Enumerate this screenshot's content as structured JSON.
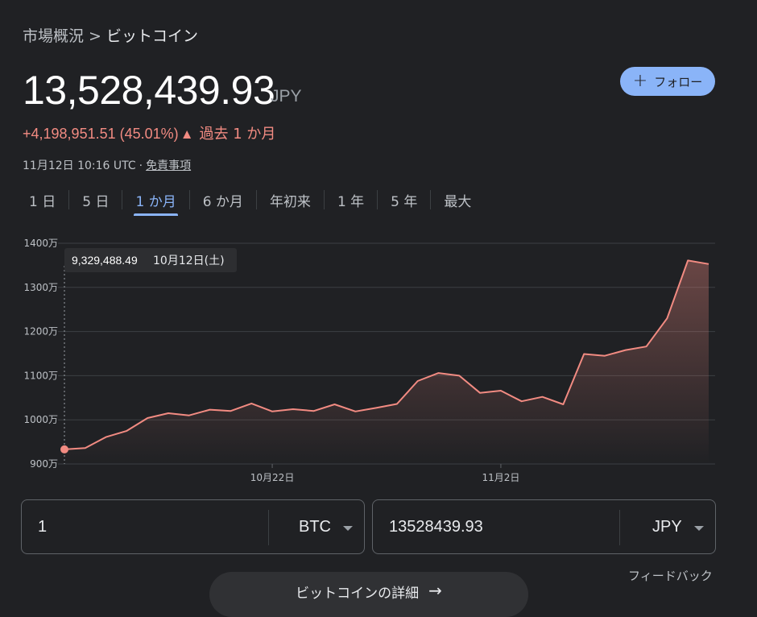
{
  "breadcrumb": {
    "parent": "市場概況",
    "separator": ">",
    "current": "ビットコイン"
  },
  "price": {
    "value": "13,528,439.93",
    "currency": "JPY"
  },
  "follow_button": {
    "label": "フォロー",
    "icon": "plus-icon"
  },
  "change": {
    "amount": "+4,198,951.51",
    "percent": "(45.01%)",
    "direction": "up-arrow-icon",
    "period": "過去 1 か月"
  },
  "timestamp": {
    "time": "11月12日 10:16 UTC",
    "dot": "·",
    "disclaimer": "免責事項"
  },
  "tabs": [
    {
      "label": "1 日"
    },
    {
      "label": "5 日"
    },
    {
      "label": "1 か月",
      "active": true
    },
    {
      "label": "6 か月"
    },
    {
      "label": "年初来"
    },
    {
      "label": "1 年"
    },
    {
      "label": "5 年"
    },
    {
      "label": "最大"
    }
  ],
  "colors": {
    "accent": "#8ab4f8",
    "line": "#f28b82",
    "background": "#202124"
  },
  "chart_data": {
    "type": "line",
    "ylim": [
      900,
      1400
    ],
    "y_ticks": [
      "1400万",
      "1300万",
      "1200万",
      "1100万",
      "1000万",
      "900万"
    ],
    "y_tick_values": [
      1400,
      1300,
      1200,
      1100,
      1000,
      900
    ],
    "x_ticks": [
      {
        "label": "10月22日",
        "index": 10
      },
      {
        "label": "11月2日",
        "index": 21
      }
    ],
    "series": [
      {
        "values": [
          933,
          936,
          961,
          975,
          1004,
          1015,
          1010,
          1023,
          1020,
          1037,
          1019,
          1024,
          1020,
          1035,
          1019,
          1027,
          1036,
          1088,
          1106,
          1100,
          1061,
          1066,
          1042,
          1052,
          1035,
          1149,
          1145,
          1158,
          1166,
          1230,
          1361,
          1353
        ]
      }
    ],
    "grid": true,
    "tooltip": {
      "value": "9,329,488.49",
      "date": "10月12日(土)",
      "index": 0
    }
  },
  "converter": {
    "from": {
      "value": "1",
      "unit": "BTC"
    },
    "to": {
      "value": "13528439.93",
      "unit": "JPY"
    }
  },
  "feedback_label": "フィードバック",
  "details_button": {
    "label": "ビットコインの詳細"
  }
}
